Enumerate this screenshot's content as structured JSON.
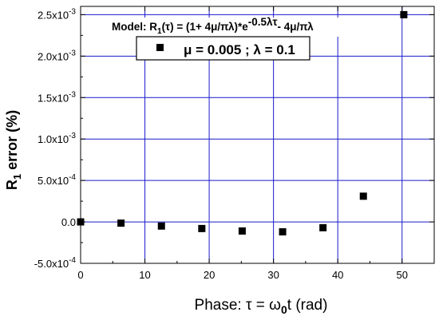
{
  "chart_data": {
    "type": "scatter",
    "title": "",
    "annotation": {
      "prefix": "Model: R",
      "sub": "1",
      "tau1": "(τ)",
      "mid": " = (1+ 4μ/πλ)*e",
      "exponent": "-0.5λτ",
      "tail": "- 4μ/πλ"
    },
    "legend": {
      "text": "μ = 0.005 ;  λ = 0.1",
      "marker": "square",
      "placement": "top-center"
    },
    "xlabel": {
      "prefix": "Phase: τ = ω",
      "sub": "0",
      "suffix": "t   (rad)"
    },
    "ylabel": {
      "prefix": "R",
      "sub": "1",
      "suffix": " error  (%)"
    },
    "xlim": [
      0,
      55
    ],
    "ylim": [
      -0.0005,
      0.0026
    ],
    "xticks": [
      0,
      10,
      20,
      30,
      40,
      50
    ],
    "xtick_labels": [
      "0",
      "10",
      "20",
      "30",
      "40",
      "50"
    ],
    "yticks": [
      -0.0005,
      0,
      0.0005,
      0.001,
      0.0015,
      0.002,
      0.0025
    ],
    "ytick_labels": [
      "-5.0x10-4",
      "0.0",
      "5.0x10-4",
      "1.0x10-3",
      "1.5x10-3",
      "2.0x10-3",
      "2.5x10-3"
    ],
    "ytick_label_parts": [
      {
        "base": "-5.0x10",
        "exp": "-4"
      },
      {
        "base": "0.0",
        "exp": ""
      },
      {
        "base": "5.0x10",
        "exp": "-4"
      },
      {
        "base": "1.0x10",
        "exp": "-3"
      },
      {
        "base": "1.5x10",
        "exp": "-3"
      },
      {
        "base": "2.0x10",
        "exp": "-3"
      },
      {
        "base": "2.5x10",
        "exp": "-3"
      }
    ],
    "grid": true,
    "series": [
      {
        "x": [
          0,
          6.28,
          12.57,
          18.85,
          25.13,
          31.42,
          37.7,
          43.98,
          50.27
        ],
        "y": [
          0,
          -1.5e-05,
          -5e-05,
          -8e-05,
          -0.00011,
          -0.00012,
          -7e-05,
          0.00031,
          0.0025
        ]
      }
    ],
    "colors": {
      "grid": "#1a1acc",
      "marker": "#000000",
      "axis": "#000000"
    }
  }
}
